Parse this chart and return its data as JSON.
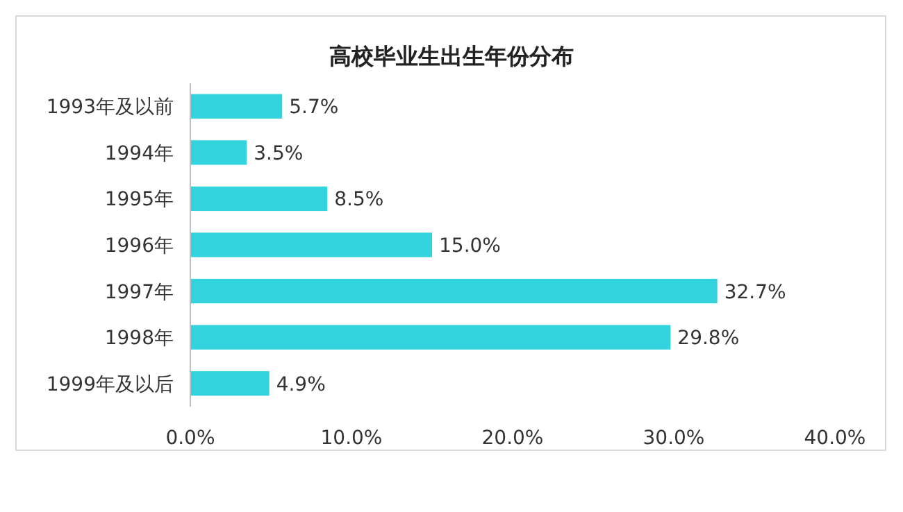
{
  "chart_data": {
    "type": "bar",
    "orientation": "horizontal",
    "title": "高校毕业生出生年份分布",
    "categories": [
      "1993年及以前",
      "1994年",
      "1995年",
      "1996年",
      "1997年",
      "1998年",
      "1999年及以后"
    ],
    "values": [
      5.7,
      3.5,
      8.5,
      15.0,
      32.7,
      29.8,
      4.9
    ],
    "value_labels": [
      "5.7%",
      "3.5%",
      "8.5%",
      "15.0%",
      "32.7%",
      "29.8%",
      "4.9%"
    ],
    "color": "#33d3de",
    "xlim": [
      0,
      40
    ],
    "xticks": [
      {
        "value": 0,
        "label": "0.0%"
      },
      {
        "value": 10,
        "label": "10.0%"
      },
      {
        "value": 20,
        "label": "20.0%"
      },
      {
        "value": 30,
        "label": "30.0%"
      },
      {
        "value": 40,
        "label": "40.0%"
      }
    ],
    "grid": false
  }
}
